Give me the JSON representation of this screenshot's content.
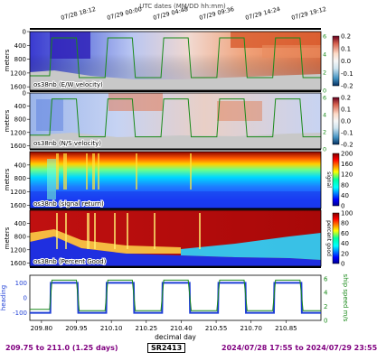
{
  "header": {
    "title": "UTC dates (MM/DD hh:mm)"
  },
  "footer": {
    "day_range": "209.75 to 211.0 (1.25 days)",
    "cruise": "SR2413",
    "date_range": "2024/07/28 17:55 to 2024/07/29 23:55"
  },
  "colors": {
    "speed_line": "#1a8a1a",
    "heading_line": "#1f3fd6",
    "title_text": "#800080",
    "no_data": "#c8c8c8"
  },
  "chart_data": [
    {
      "type": "heatmap",
      "label": "os38nb (E/W velocity)",
      "ylabel": "meters",
      "yticks": [
        "0",
        "400",
        "800",
        "1200",
        "1600"
      ],
      "ylim": [
        0,
        1700
      ],
      "colorbar": {
        "ticks": [
          "0.2",
          "0.1",
          "0.0",
          "-0.1",
          "-0.2"
        ],
        "cmap": "diverging"
      },
      "right_axis_ticks": [
        "6",
        "4",
        "2",
        "0"
      ],
      "top_date_labels": [
        "07/28 18:12",
        "07/29 00:00",
        "07/29 04:48",
        "07/29 09:36",
        "07/29 14:24",
        "07/29 19:12"
      ]
    },
    {
      "type": "heatmap",
      "label": "os38nb (N/S velocity)",
      "ylabel": "meters",
      "yticks": [
        "0",
        "400",
        "800",
        "1200",
        "1600"
      ],
      "ylim": [
        0,
        1700
      ],
      "colorbar": {
        "ticks": [
          "0.2",
          "0.1",
          "0.0",
          "-0.1",
          "-0.2"
        ],
        "cmap": "diverging"
      },
      "right_axis_ticks": [
        "6",
        "4",
        "2",
        "0"
      ]
    },
    {
      "type": "heatmap",
      "label": "os38nb (signal return)",
      "ylabel": "meters",
      "yticks": [
        "400",
        "800",
        "1200",
        "1600"
      ],
      "ylim": [
        0,
        1700
      ],
      "colorbar": {
        "ticks": [
          "200",
          "160",
          "120",
          "80",
          "40",
          "0"
        ],
        "label": "signal",
        "cmap": "jet"
      }
    },
    {
      "type": "heatmap",
      "label": "os38nb (Percent Good)",
      "ylabel": "meters",
      "yticks": [
        "400",
        "800",
        "1200",
        "1600"
      ],
      "ylim": [
        0,
        1700
      ],
      "colorbar": {
        "ticks": [
          "100",
          "80",
          "60",
          "40",
          "20",
          "0"
        ],
        "label": "percent good",
        "cmap": "jet"
      }
    },
    {
      "type": "line",
      "xlabel": "decimal day",
      "x_ticks": [
        "209.80",
        "209.95",
        "210.10",
        "210.25",
        "210.40",
        "210.55",
        "210.70",
        "210.85"
      ],
      "x_tick_values": [
        209.8,
        209.95,
        210.1,
        210.25,
        210.4,
        210.55,
        210.7,
        210.85
      ],
      "xlim": [
        209.75,
        211.0
      ],
      "ylabel": "heading",
      "ylabel_right": "ship speed m/s",
      "yticks_left": [
        "100",
        "0",
        "-100"
      ],
      "ylim_left": [
        -150,
        150
      ],
      "yticks_right": [
        "6",
        "4",
        "2",
        "0"
      ],
      "ylim_right": [
        0,
        6.5
      ],
      "series": [
        {
          "name": "heading",
          "color": "#1f3fd6",
          "x": [
            209.75,
            209.838,
            209.84,
            209.955,
            209.958,
            210.078,
            210.08,
            210.196,
            210.198,
            210.318,
            210.32,
            210.436,
            210.438,
            210.558,
            210.56,
            210.676,
            210.678,
            210.798,
            210.8,
            210.916,
            210.918,
            211.0
          ],
          "y": [
            -100,
            -100,
            100,
            100,
            -100,
            -100,
            100,
            100,
            -100,
            -100,
            100,
            100,
            -100,
            -100,
            100,
            100,
            -100,
            -100,
            100,
            100,
            -100,
            -100
          ]
        },
        {
          "name": "ship speed",
          "color": "#1a8a1a",
          "x": [
            209.75,
            209.835,
            209.845,
            209.95,
            209.962,
            210.073,
            210.085,
            210.19,
            210.203,
            210.313,
            210.325,
            210.43,
            210.443,
            210.553,
            210.565,
            210.67,
            210.683,
            210.793,
            210.805,
            210.91,
            210.923,
            211.0
          ],
          "y": [
            1.6,
            1.6,
            5.8,
            5.8,
            1.4,
            1.4,
            5.8,
            5.8,
            1.4,
            1.4,
            5.8,
            5.8,
            1.4,
            1.4,
            5.8,
            5.8,
            1.4,
            1.4,
            5.8,
            5.8,
            1.4,
            1.4
          ]
        }
      ]
    }
  ]
}
